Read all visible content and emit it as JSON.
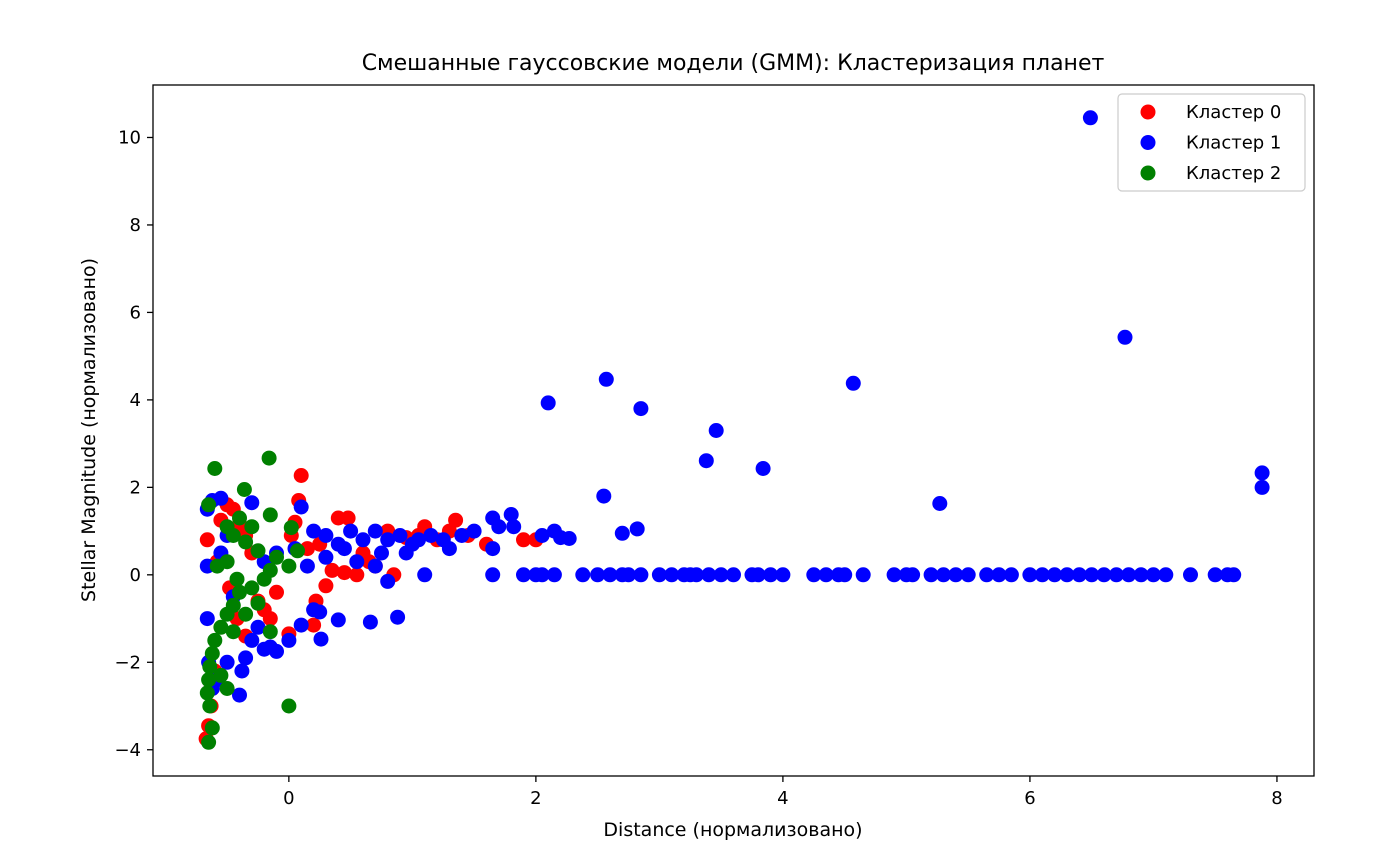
{
  "chart_data": {
    "type": "scatter",
    "title": "Смешанные гауссовские модели (GMM): Кластеризация планет",
    "xlabel": "Distance (нормализовано)",
    "ylabel": "Stellar Magnitude (нормализовано)",
    "xlim": [
      -1.1,
      8.3
    ],
    "ylim": [
      -4.6,
      11.2
    ],
    "x_ticks": [
      0,
      2,
      4,
      6,
      8
    ],
    "y_ticks": [
      -4,
      -2,
      0,
      2,
      4,
      6,
      8,
      10
    ],
    "x_tick_labels": [
      "0",
      "2",
      "4",
      "6",
      "8"
    ],
    "y_tick_labels": [
      "−4",
      "−2",
      "0",
      "2",
      "4",
      "6",
      "8",
      "10"
    ],
    "grid": false,
    "legend_position": "top-right",
    "series": [
      {
        "name": "Кластер 0",
        "color": "#ff0000",
        "points": [
          [
            -0.67,
            -3.75
          ],
          [
            -0.65,
            -3.45
          ],
          [
            -0.63,
            -3.0
          ],
          [
            -0.62,
            -2.6
          ],
          [
            -0.6,
            -2.2
          ],
          [
            -0.66,
            0.8
          ],
          [
            -0.55,
            1.25
          ],
          [
            -0.5,
            1.6
          ],
          [
            -0.45,
            1.5
          ],
          [
            -0.4,
            1.15
          ],
          [
            -0.35,
            0.9
          ],
          [
            -0.3,
            0.5
          ],
          [
            -0.25,
            -0.6
          ],
          [
            -0.2,
            -0.8
          ],
          [
            -0.15,
            -1.0
          ],
          [
            -0.1,
            -0.4
          ],
          [
            0.1,
            2.27
          ],
          [
            0.08,
            1.7
          ],
          [
            0.05,
            1.2
          ],
          [
            0.0,
            -1.35
          ],
          [
            0.2,
            -1.15
          ],
          [
            0.22,
            -0.6
          ],
          [
            0.3,
            -0.25
          ],
          [
            0.35,
            0.1
          ],
          [
            0.4,
            1.3
          ],
          [
            0.48,
            1.3
          ],
          [
            0.55,
            0.0
          ],
          [
            0.6,
            0.5
          ],
          [
            0.7,
            0.2
          ],
          [
            0.8,
            1.0
          ],
          [
            0.85,
            0.0
          ],
          [
            0.95,
            0.85
          ],
          [
            1.05,
            0.9
          ],
          [
            1.1,
            1.1
          ],
          [
            1.2,
            0.8
          ],
          [
            1.3,
            1.0
          ],
          [
            1.35,
            1.25
          ],
          [
            1.45,
            0.9
          ],
          [
            1.6,
            0.7
          ],
          [
            1.9,
            0.8
          ],
          [
            2.0,
            0.8
          ],
          [
            0.15,
            0.6
          ],
          [
            0.25,
            0.7
          ],
          [
            -0.58,
            0.3
          ],
          [
            -0.48,
            -0.3
          ],
          [
            -0.42,
            -1.0
          ],
          [
            -0.35,
            -1.4
          ],
          [
            0.45,
            0.05
          ],
          [
            0.65,
            0.3
          ],
          [
            0.02,
            0.9
          ]
        ]
      },
      {
        "name": "Кластер 1",
        "color": "#0000ff",
        "points": [
          [
            6.49,
            10.45
          ],
          [
            6.77,
            5.43
          ],
          [
            2.57,
            4.47
          ],
          [
            4.57,
            4.38
          ],
          [
            2.1,
            3.93
          ],
          [
            2.85,
            3.8
          ],
          [
            3.46,
            3.3
          ],
          [
            3.38,
            2.61
          ],
          [
            3.84,
            2.43
          ],
          [
            7.88,
            2.33
          ],
          [
            7.88,
            2.0
          ],
          [
            2.55,
            1.8
          ],
          [
            5.27,
            1.63
          ],
          [
            2.7,
            0.95
          ],
          [
            2.82,
            1.05
          ],
          [
            2.2,
            0.85
          ],
          [
            2.27,
            0.83
          ],
          [
            2.15,
            1.0
          ],
          [
            2.05,
            0.9
          ],
          [
            1.82,
            1.1
          ],
          [
            1.8,
            1.38
          ],
          [
            1.7,
            1.1
          ],
          [
            1.65,
            1.3
          ],
          [
            1.5,
            1.0
          ],
          [
            1.4,
            0.9
          ],
          [
            1.25,
            0.8
          ],
          [
            1.15,
            0.9
          ],
          [
            1.0,
            0.7
          ],
          [
            0.9,
            0.9
          ],
          [
            0.8,
            0.8
          ],
          [
            0.7,
            1.0
          ],
          [
            0.6,
            0.8
          ],
          [
            0.5,
            1.0
          ],
          [
            0.4,
            0.7
          ],
          [
            0.3,
            0.9
          ],
          [
            0.2,
            1.0
          ],
          [
            0.1,
            1.55
          ],
          [
            0.05,
            0.6
          ],
          [
            -0.1,
            0.5
          ],
          [
            -0.2,
            0.3
          ],
          [
            -0.3,
            1.65
          ],
          [
            -0.55,
            1.75
          ],
          [
            -0.62,
            1.7
          ],
          [
            -0.66,
            1.5
          ],
          [
            -0.66,
            0.2
          ],
          [
            -0.66,
            -1.0
          ],
          [
            -0.65,
            -2.0
          ],
          [
            -0.62,
            -2.6
          ],
          [
            -0.58,
            -2.4
          ],
          [
            -0.5,
            -2.0
          ],
          [
            -0.4,
            -2.75
          ],
          [
            -0.38,
            -2.2
          ],
          [
            -0.35,
            -1.9
          ],
          [
            -0.3,
            -1.5
          ],
          [
            -0.25,
            -1.2
          ],
          [
            -0.2,
            -1.7
          ],
          [
            -0.15,
            -1.65
          ],
          [
            -0.1,
            -1.75
          ],
          [
            0.0,
            -1.5
          ],
          [
            0.1,
            -1.15
          ],
          [
            0.2,
            -0.8
          ],
          [
            0.25,
            -0.85
          ],
          [
            0.26,
            -1.47
          ],
          [
            0.4,
            -1.03
          ],
          [
            0.66,
            -1.08
          ],
          [
            0.88,
            -0.97
          ],
          [
            0.8,
            -0.15
          ],
          [
            0.7,
            0.2
          ],
          [
            0.95,
            0.5
          ],
          [
            1.1,
            0.0
          ],
          [
            1.65,
            0.0
          ],
          [
            1.65,
            0.6
          ],
          [
            1.9,
            0.0
          ],
          [
            2.0,
            0.0
          ],
          [
            2.05,
            0.0
          ],
          [
            2.15,
            0.0
          ],
          [
            2.38,
            0.0
          ],
          [
            2.5,
            0.0
          ],
          [
            2.6,
            0.0
          ],
          [
            2.7,
            0.0
          ],
          [
            2.75,
            0.0
          ],
          [
            2.85,
            0.0
          ],
          [
            3.0,
            0.0
          ],
          [
            3.1,
            0.0
          ],
          [
            3.2,
            0.0
          ],
          [
            3.25,
            0.0
          ],
          [
            3.3,
            0.0
          ],
          [
            3.4,
            0.0
          ],
          [
            3.5,
            0.0
          ],
          [
            3.6,
            0.0
          ],
          [
            3.75,
            0.0
          ],
          [
            3.8,
            0.0
          ],
          [
            3.9,
            0.0
          ],
          [
            4.0,
            0.0
          ],
          [
            4.25,
            0.0
          ],
          [
            4.35,
            0.0
          ],
          [
            4.45,
            0.0
          ],
          [
            4.5,
            0.0
          ],
          [
            4.65,
            0.0
          ],
          [
            4.9,
            0.0
          ],
          [
            5.0,
            0.0
          ],
          [
            5.05,
            0.0
          ],
          [
            5.2,
            0.0
          ],
          [
            5.3,
            0.0
          ],
          [
            5.4,
            0.0
          ],
          [
            5.5,
            0.0
          ],
          [
            5.65,
            0.0
          ],
          [
            5.75,
            0.0
          ],
          [
            5.85,
            0.0
          ],
          [
            6.0,
            0.0
          ],
          [
            6.1,
            0.0
          ],
          [
            6.2,
            0.0
          ],
          [
            6.3,
            0.0
          ],
          [
            6.4,
            0.0
          ],
          [
            6.5,
            0.0
          ],
          [
            6.6,
            0.0
          ],
          [
            6.7,
            0.0
          ],
          [
            6.8,
            0.0
          ],
          [
            6.9,
            0.0
          ],
          [
            7.0,
            0.0
          ],
          [
            7.1,
            0.0
          ],
          [
            7.3,
            0.0
          ],
          [
            7.5,
            0.0
          ],
          [
            7.6,
            0.0
          ],
          [
            7.65,
            0.0
          ],
          [
            -0.55,
            0.5
          ],
          [
            -0.45,
            -0.5
          ],
          [
            -0.5,
            0.9
          ],
          [
            0.15,
            0.2
          ],
          [
            0.3,
            0.4
          ],
          [
            0.45,
            0.6
          ],
          [
            0.55,
            0.3
          ],
          [
            0.75,
            0.5
          ],
          [
            1.05,
            0.8
          ],
          [
            1.3,
            0.6
          ]
        ]
      },
      {
        "name": "Кластер 2",
        "color": "#008000",
        "points": [
          [
            -0.6,
            2.43
          ],
          [
            -0.16,
            2.67
          ],
          [
            -0.36,
            1.95
          ],
          [
            -0.65,
            1.6
          ],
          [
            -0.15,
            1.37
          ],
          [
            -0.4,
            1.3
          ],
          [
            -0.5,
            1.1
          ],
          [
            -0.45,
            0.9
          ],
          [
            -0.3,
            1.1
          ],
          [
            0.02,
            1.08
          ],
          [
            -0.35,
            0.75
          ],
          [
            -0.25,
            0.55
          ],
          [
            0.07,
            0.55
          ],
          [
            -0.1,
            0.4
          ],
          [
            0.0,
            0.2
          ],
          [
            -0.15,
            0.1
          ],
          [
            -0.2,
            -0.1
          ],
          [
            -0.3,
            -0.3
          ],
          [
            -0.4,
            -0.4
          ],
          [
            -0.45,
            -0.7
          ],
          [
            -0.5,
            -0.9
          ],
          [
            -0.55,
            -1.2
          ],
          [
            -0.6,
            -1.5
          ],
          [
            -0.62,
            -1.8
          ],
          [
            -0.64,
            -2.1
          ],
          [
            -0.65,
            -2.4
          ],
          [
            -0.66,
            -2.7
          ],
          [
            -0.64,
            -3.0
          ],
          [
            -0.62,
            -3.5
          ],
          [
            -0.65,
            -3.83
          ],
          [
            -0.15,
            -1.3
          ],
          [
            0.0,
            -3.0
          ],
          [
            -0.55,
            -2.3
          ],
          [
            -0.5,
            -2.6
          ],
          [
            -0.58,
            0.2
          ],
          [
            -0.5,
            0.3
          ],
          [
            -0.42,
            -0.1
          ],
          [
            -0.25,
            -0.65
          ],
          [
            -0.35,
            -0.9
          ],
          [
            -0.45,
            -1.3
          ]
        ]
      }
    ]
  }
}
